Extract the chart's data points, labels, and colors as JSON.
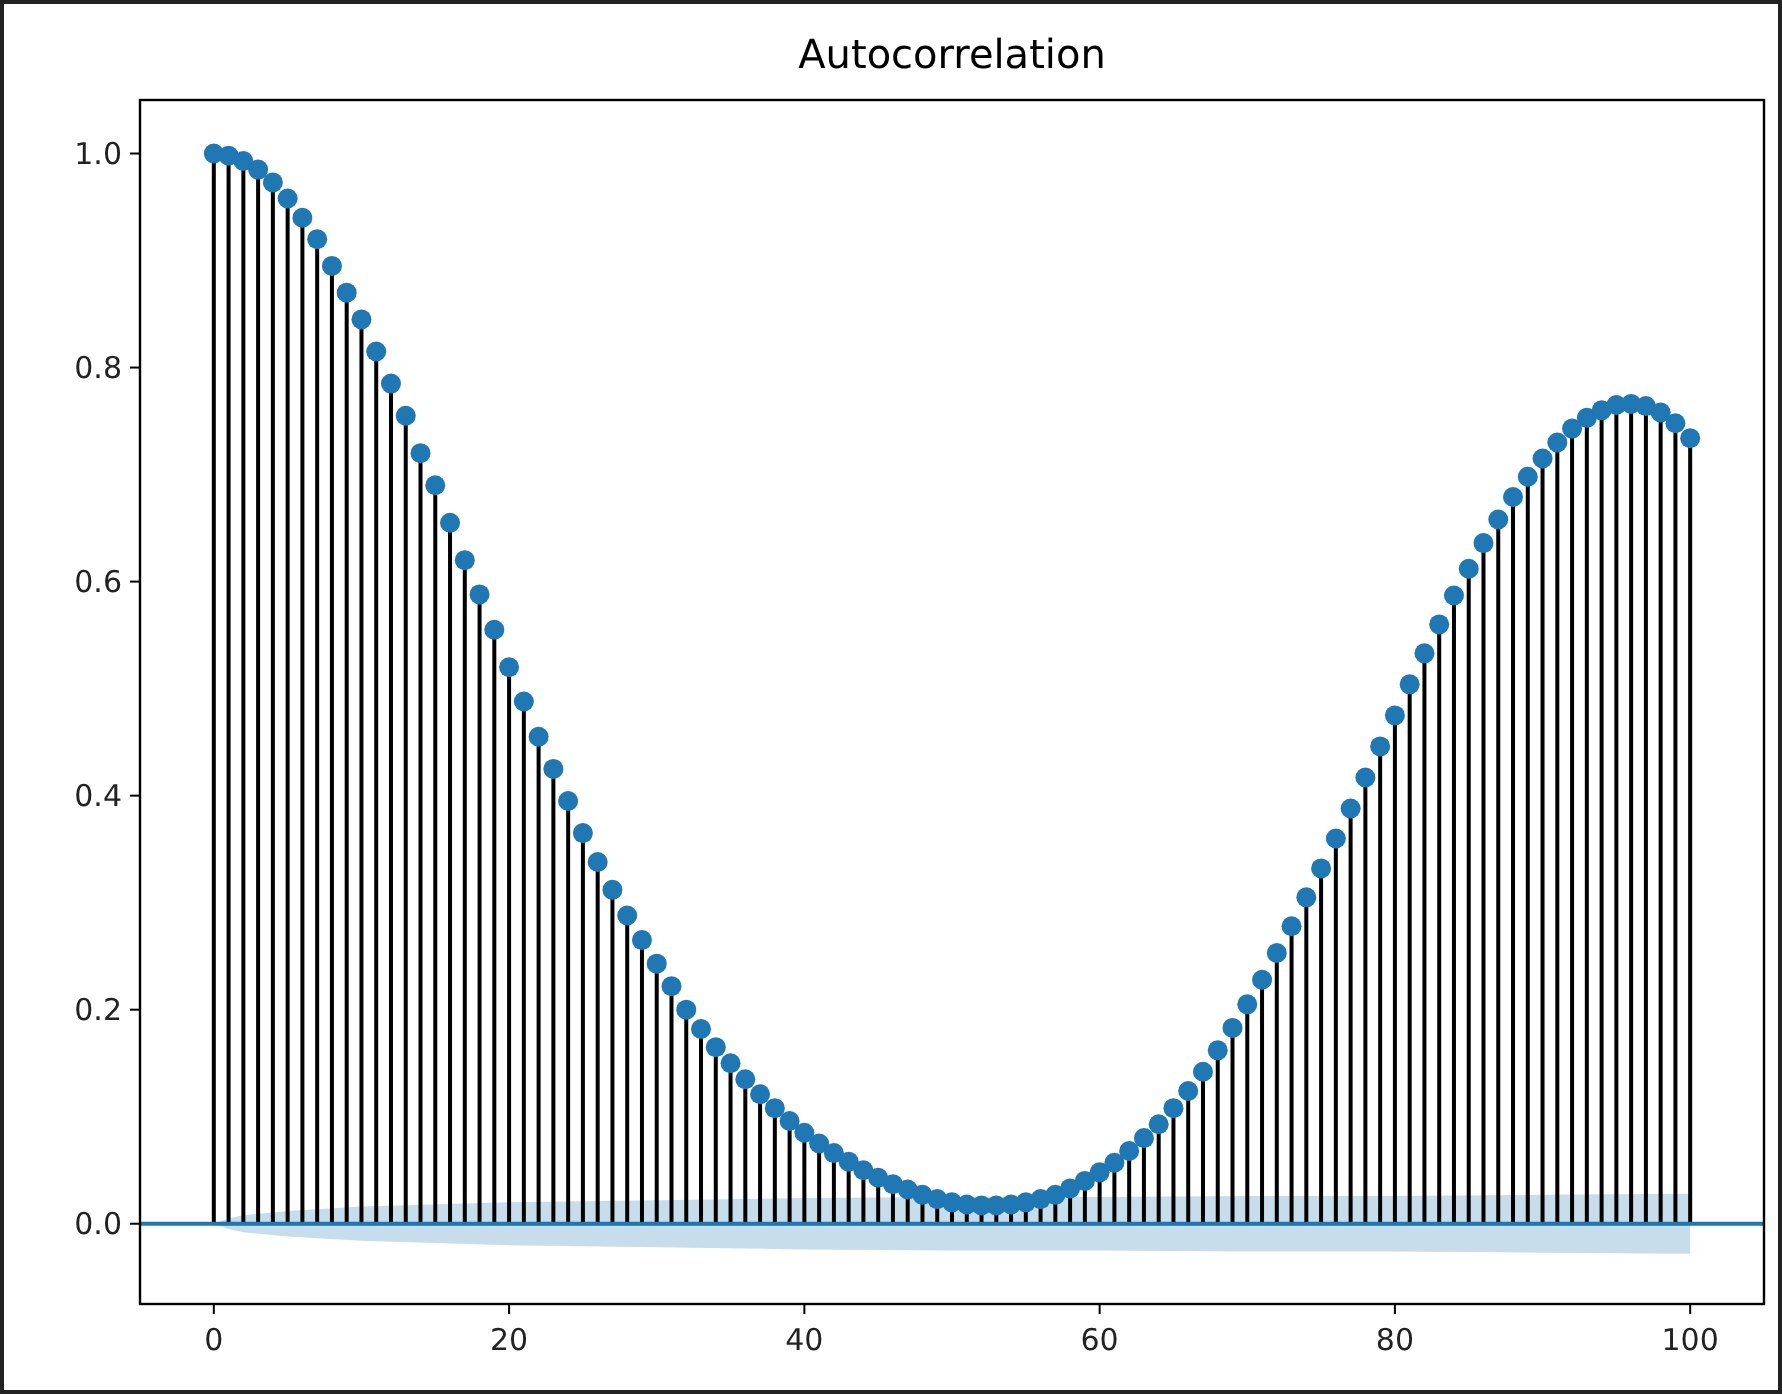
{
  "chart_data": {
    "type": "lollipop",
    "title": "Autocorrelation",
    "xlim": [
      -5,
      105
    ],
    "xticks": [
      0,
      20,
      40,
      60,
      80,
      100
    ],
    "ylim": [
      -0.075,
      1.05
    ],
    "yticks": [
      {
        "value": 0,
        "label": "0.0"
      },
      {
        "value": 0.2,
        "label": "0.2"
      },
      {
        "value": 0.4,
        "label": "0.4"
      },
      {
        "value": 0.6,
        "label": "0.6"
      },
      {
        "value": 0.8,
        "label": "0.8"
      },
      {
        "value": 1,
        "label": "1.0"
      }
    ],
    "tick_labels": "xy",
    "ref_lines": [
      {
        "axis": "y",
        "value": 0,
        "color": "#1f77b4"
      }
    ],
    "series": [
      {
        "type": "line",
        "color": "#1f77b4",
        "x": [
          0,
          1,
          2,
          5,
          10,
          20,
          30,
          40,
          50,
          60,
          70,
          80,
          90,
          100
        ],
        "values": [
          0,
          0,
          0,
          0,
          0,
          0,
          0,
          0,
          0,
          0,
          0,
          0,
          0,
          0
        ],
        "lower": [
          0,
          -0.005,
          -0.008,
          -0.012,
          -0.016,
          -0.02,
          -0.022,
          -0.024,
          -0.025,
          -0.025,
          -0.026,
          -0.026,
          -0.027,
          -0.028
        ],
        "upper": [
          0,
          0.005,
          0.008,
          0.012,
          0.016,
          0.02,
          0.022,
          0.024,
          0.025,
          0.025,
          0.026,
          0.026,
          0.027,
          0.028
        ]
      },
      {
        "color": "#1f77b4",
        "marker": "circle",
        "x": [
          0,
          1,
          2,
          3,
          4,
          5,
          6,
          7,
          8,
          9,
          10,
          11,
          12,
          13,
          14,
          15,
          16,
          17,
          18,
          19,
          20,
          21,
          22,
          23,
          24,
          25,
          26,
          27,
          28,
          29,
          30,
          31,
          32,
          33,
          34,
          35,
          36,
          37,
          38,
          39,
          40,
          41,
          42,
          43,
          44,
          45,
          46,
          47,
          48,
          49,
          50,
          51,
          52,
          53,
          54,
          55,
          56,
          57,
          58,
          59,
          60,
          61,
          62,
          63,
          64,
          65,
          66,
          67,
          68,
          69,
          70,
          71,
          72,
          73,
          74,
          75,
          76,
          77,
          78,
          79,
          80,
          81,
          82,
          83,
          84,
          85,
          86,
          87,
          88,
          89,
          90,
          91,
          92,
          93,
          94,
          95,
          96,
          97,
          98,
          99,
          100
        ],
        "values": [
          1.0,
          0.998,
          0.993,
          0.985,
          0.973,
          0.958,
          0.94,
          0.92,
          0.895,
          0.87,
          0.845,
          0.815,
          0.785,
          0.755,
          0.72,
          0.69,
          0.655,
          0.62,
          0.588,
          0.555,
          0.52,
          0.488,
          0.455,
          0.425,
          0.395,
          0.365,
          0.338,
          0.312,
          0.288,
          0.265,
          0.243,
          0.222,
          0.2,
          0.182,
          0.165,
          0.15,
          0.135,
          0.121,
          0.108,
          0.096,
          0.085,
          0.075,
          0.066,
          0.058,
          0.05,
          0.043,
          0.037,
          0.032,
          0.027,
          0.023,
          0.02,
          0.018,
          0.017,
          0.017,
          0.018,
          0.02,
          0.023,
          0.027,
          0.033,
          0.04,
          0.048,
          0.057,
          0.068,
          0.08,
          0.093,
          0.108,
          0.124,
          0.142,
          0.162,
          0.183,
          0.205,
          0.228,
          0.253,
          0.278,
          0.305,
          0.332,
          0.36,
          0.388,
          0.417,
          0.446,
          0.475,
          0.504,
          0.533,
          0.56,
          0.587,
          0.612,
          0.636,
          0.658,
          0.679,
          0.698,
          0.715,
          0.73,
          0.743,
          0.753,
          0.76,
          0.765,
          0.766,
          0.764,
          0.758,
          0.748,
          0.734
        ]
      }
    ]
  }
}
